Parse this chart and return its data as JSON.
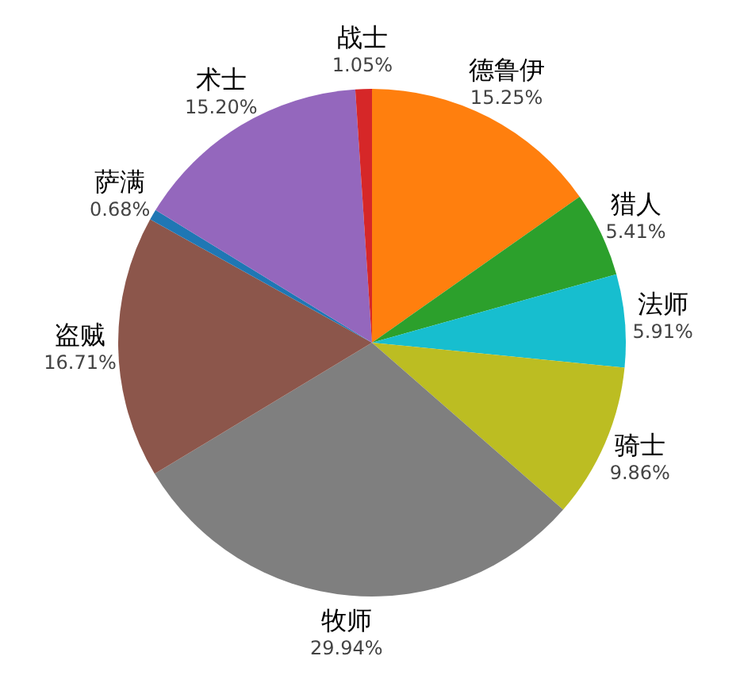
{
  "chart_data": {
    "type": "pie",
    "categories": [
      "德鲁伊",
      "猎人",
      "法师",
      "骑士",
      "牧师",
      "盗贼",
      "萨满",
      "术士",
      "战士"
    ],
    "values": [
      15.25,
      5.41,
      5.91,
      9.86,
      29.94,
      16.71,
      0.68,
      15.2,
      1.05
    ],
    "value_labels": [
      "15.25%",
      "5.41%",
      "5.91%",
      "9.86%",
      "29.94%",
      "16.71%",
      "0.68%",
      "15.20%",
      "1.05%"
    ],
    "colors": [
      "#ff7f0e",
      "#2ca02c",
      "#17becf",
      "#bcbd22",
      "#7f7f7f",
      "#8c564b",
      "#1f77b4",
      "#9467bd",
      "#d62728"
    ]
  }
}
